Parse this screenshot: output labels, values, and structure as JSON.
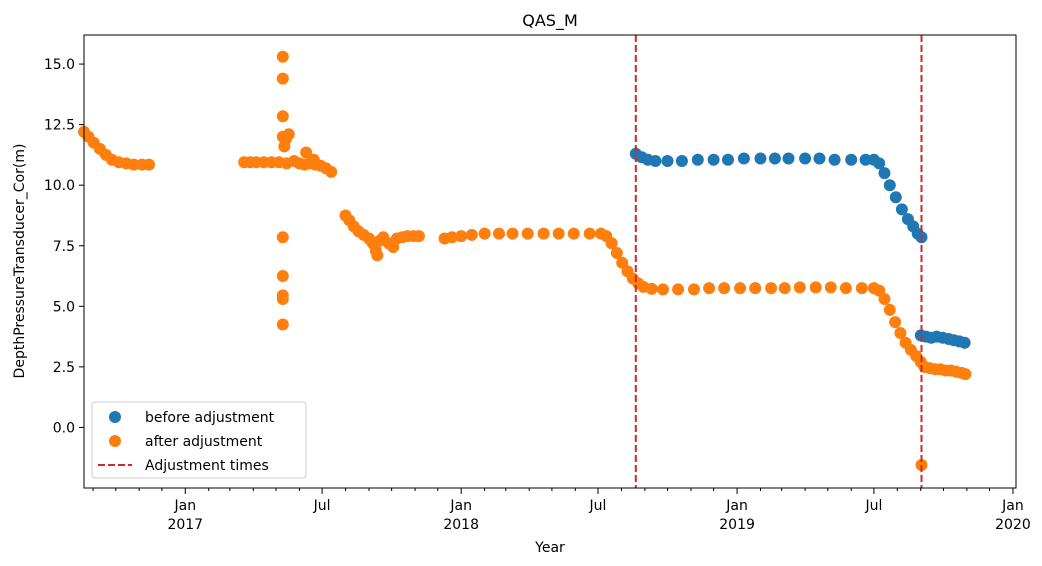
{
  "chart_data": {
    "type": "scatter",
    "title": "QAS_M",
    "xlabel": "Year",
    "ylabel": "DepthPressureTransducer_Cor(m)",
    "xlim": [
      "2016-08-20",
      "2020-01-05"
    ],
    "ylim": [
      -2.5,
      16.2
    ],
    "y_ticks": [
      0.0,
      2.5,
      5.0,
      7.5,
      10.0,
      12.5,
      15.0
    ],
    "y_tick_labels": [
      "0.0",
      "2.5",
      "5.0",
      "7.5",
      "10.0",
      "12.5",
      "15.0"
    ],
    "x_major_ticks": [
      {
        "date": "2017-01-01",
        "label": "Jan",
        "year": "2017"
      },
      {
        "date": "2017-07-01",
        "label": "Jul",
        "year": ""
      },
      {
        "date": "2018-01-01",
        "label": "Jan",
        "year": "2018"
      },
      {
        "date": "2018-07-01",
        "label": "Jul",
        "year": ""
      },
      {
        "date": "2019-01-01",
        "label": "Jan",
        "year": "2019"
      },
      {
        "date": "2019-07-01",
        "label": "Jul",
        "year": ""
      },
      {
        "date": "2020-01-01",
        "label": "Jan",
        "year": "2020"
      }
    ],
    "legend": {
      "placement": "lower-left"
    },
    "grid": false,
    "series": [
      {
        "name": "before adjustment",
        "color": "#1f77b4",
        "marker": "circle",
        "points": [
          [
            "2018-08-20",
            11.3
          ],
          [
            "2018-08-28",
            11.15
          ],
          [
            "2018-09-05",
            11.05
          ],
          [
            "2018-09-15",
            11.0
          ],
          [
            "2018-10-01",
            11.0
          ],
          [
            "2018-10-20",
            11.0
          ],
          [
            "2018-11-10",
            11.05
          ],
          [
            "2018-12-01",
            11.05
          ],
          [
            "2018-12-20",
            11.05
          ],
          [
            "2019-01-10",
            11.1
          ],
          [
            "2019-02-01",
            11.1
          ],
          [
            "2019-02-20",
            11.1
          ],
          [
            "2019-03-10",
            11.1
          ],
          [
            "2019-04-01",
            11.1
          ],
          [
            "2019-04-20",
            11.1
          ],
          [
            "2019-05-10",
            11.05
          ],
          [
            "2019-06-01",
            11.05
          ],
          [
            "2019-06-20",
            11.05
          ],
          [
            "2019-07-01",
            11.05
          ],
          [
            "2019-07-08",
            10.9
          ],
          [
            "2019-07-15",
            10.5
          ],
          [
            "2019-07-22",
            10.0
          ],
          [
            "2019-07-30",
            9.5
          ],
          [
            "2019-08-07",
            9.0
          ],
          [
            "2019-08-15",
            8.6
          ],
          [
            "2019-08-22",
            8.3
          ],
          [
            "2019-08-28",
            8.0
          ],
          [
            "2019-09-02",
            7.85
          ],
          [
            "2019-09-01",
            3.8
          ],
          [
            "2019-09-08",
            3.75
          ],
          [
            "2019-09-15",
            3.7
          ],
          [
            "2019-09-22",
            3.75
          ],
          [
            "2019-09-30",
            3.7
          ],
          [
            "2019-10-08",
            3.65
          ],
          [
            "2019-10-15",
            3.6
          ],
          [
            "2019-10-22",
            3.55
          ],
          [
            "2019-10-29",
            3.5
          ]
        ]
      },
      {
        "name": "after adjustment",
        "color": "#ff7f0e",
        "marker": "circle",
        "points": [
          [
            "2016-08-20",
            12.2
          ],
          [
            "2016-08-26",
            12.0
          ],
          [
            "2016-09-02",
            11.75
          ],
          [
            "2016-09-10",
            11.5
          ],
          [
            "2016-09-18",
            11.25
          ],
          [
            "2016-09-26",
            11.05
          ],
          [
            "2016-10-05",
            10.95
          ],
          [
            "2016-10-15",
            10.9
          ],
          [
            "2016-10-25",
            10.85
          ],
          [
            "2016-11-05",
            10.85
          ],
          [
            "2016-11-14",
            10.85
          ],
          [
            "2017-03-20",
            10.95
          ],
          [
            "2017-03-28",
            10.95
          ],
          [
            "2017-04-05",
            10.95
          ],
          [
            "2017-04-15",
            10.95
          ],
          [
            "2017-04-25",
            10.95
          ],
          [
            "2017-05-05",
            10.95
          ],
          [
            "2017-05-15",
            10.9
          ],
          [
            "2017-05-25",
            11.0
          ],
          [
            "2017-06-01",
            10.9
          ],
          [
            "2017-06-08",
            10.85
          ],
          [
            "2017-06-15",
            10.9
          ],
          [
            "2017-06-22",
            10.85
          ],
          [
            "2017-06-29",
            10.8
          ],
          [
            "2017-07-06",
            10.7
          ],
          [
            "2017-07-13",
            10.55
          ],
          [
            "2017-05-10",
            15.3
          ],
          [
            "2017-05-10",
            14.4
          ],
          [
            "2017-05-10",
            12.85
          ],
          [
            "2017-05-10",
            12.0
          ],
          [
            "2017-05-14",
            11.9
          ],
          [
            "2017-05-18",
            12.1
          ],
          [
            "2017-05-12",
            11.6
          ],
          [
            "2017-05-10",
            7.85
          ],
          [
            "2017-05-10",
            6.25
          ],
          [
            "2017-05-10",
            5.45
          ],
          [
            "2017-05-10",
            5.3
          ],
          [
            "2017-05-10",
            4.25
          ],
          [
            "2017-06-10",
            11.35
          ],
          [
            "2017-06-20",
            11.05
          ],
          [
            "2017-08-01",
            8.75
          ],
          [
            "2017-08-06",
            8.55
          ],
          [
            "2017-08-12",
            8.3
          ],
          [
            "2017-08-18",
            8.1
          ],
          [
            "2017-08-25",
            7.95
          ],
          [
            "2017-09-01",
            7.8
          ],
          [
            "2017-09-06",
            7.6
          ],
          [
            "2017-09-10",
            7.3
          ],
          [
            "2017-09-12",
            7.1
          ],
          [
            "2017-09-15",
            7.7
          ],
          [
            "2017-09-20",
            7.85
          ],
          [
            "2017-09-27",
            7.6
          ],
          [
            "2017-10-03",
            7.45
          ],
          [
            "2017-10-08",
            7.8
          ],
          [
            "2017-10-15",
            7.85
          ],
          [
            "2017-10-22",
            7.9
          ],
          [
            "2017-10-30",
            7.9
          ],
          [
            "2017-11-06",
            7.9
          ],
          [
            "2017-12-10",
            7.8
          ],
          [
            "2017-12-20",
            7.85
          ],
          [
            "2018-01-01",
            7.9
          ],
          [
            "2018-01-15",
            7.95
          ],
          [
            "2018-02-01",
            8.0
          ],
          [
            "2018-02-20",
            8.0
          ],
          [
            "2018-03-10",
            8.0
          ],
          [
            "2018-03-30",
            8.0
          ],
          [
            "2018-04-20",
            8.0
          ],
          [
            "2018-05-10",
            8.0
          ],
          [
            "2018-05-30",
            8.0
          ],
          [
            "2018-06-20",
            8.0
          ],
          [
            "2018-07-05",
            8.0
          ],
          [
            "2018-07-12",
            7.9
          ],
          [
            "2018-07-19",
            7.6
          ],
          [
            "2018-07-26",
            7.2
          ],
          [
            "2018-08-02",
            6.8
          ],
          [
            "2018-08-09",
            6.45
          ],
          [
            "2018-08-16",
            6.15
          ],
          [
            "2018-08-23",
            5.95
          ],
          [
            "2018-08-30",
            5.8
          ],
          [
            "2018-09-10",
            5.72
          ],
          [
            "2018-09-25",
            5.7
          ],
          [
            "2018-10-15",
            5.7
          ],
          [
            "2018-11-05",
            5.7
          ],
          [
            "2018-11-25",
            5.75
          ],
          [
            "2018-12-15",
            5.75
          ],
          [
            "2019-01-05",
            5.75
          ],
          [
            "2019-01-25",
            5.75
          ],
          [
            "2019-02-15",
            5.75
          ],
          [
            "2019-03-05",
            5.75
          ],
          [
            "2019-03-25",
            5.78
          ],
          [
            "2019-04-15",
            5.78
          ],
          [
            "2019-05-05",
            5.78
          ],
          [
            "2019-05-25",
            5.75
          ],
          [
            "2019-06-15",
            5.75
          ],
          [
            "2019-07-01",
            5.75
          ],
          [
            "2019-07-08",
            5.65
          ],
          [
            "2019-07-15",
            5.3
          ],
          [
            "2019-07-22",
            4.85
          ],
          [
            "2019-07-29",
            4.35
          ],
          [
            "2019-08-05",
            3.9
          ],
          [
            "2019-08-12",
            3.5
          ],
          [
            "2019-08-19",
            3.2
          ],
          [
            "2019-08-26",
            2.95
          ],
          [
            "2019-09-01",
            2.7
          ],
          [
            "2019-09-02",
            -1.55
          ],
          [
            "2019-09-06",
            2.5
          ],
          [
            "2019-09-13",
            2.45
          ],
          [
            "2019-09-20",
            2.4
          ],
          [
            "2019-09-27",
            2.4
          ],
          [
            "2019-10-04",
            2.35
          ],
          [
            "2019-10-11",
            2.35
          ],
          [
            "2019-10-18",
            2.3
          ],
          [
            "2019-10-25",
            2.25
          ],
          [
            "2019-10-30",
            2.2
          ]
        ]
      },
      {
        "name": "Adjustment times",
        "color": "#d62728",
        "style": "dashed-vertical",
        "dates": [
          "2018-08-20",
          "2019-09-02"
        ]
      }
    ]
  }
}
